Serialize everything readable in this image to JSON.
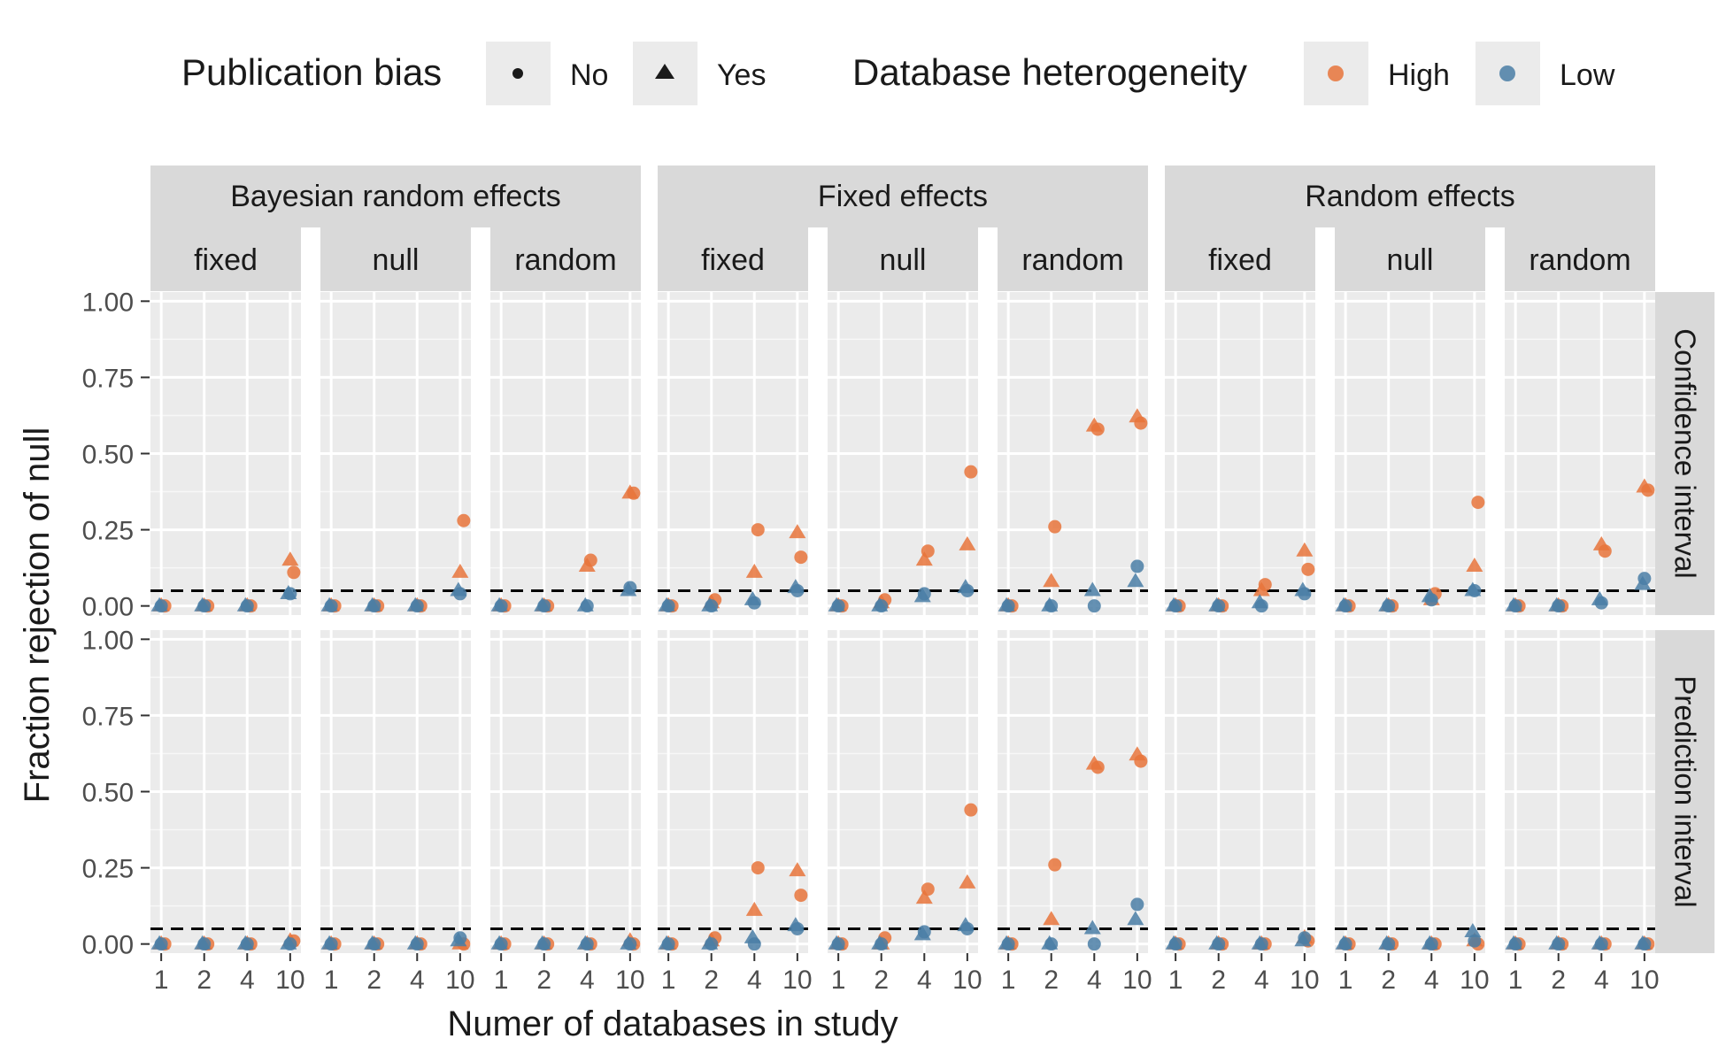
{
  "chart_data": {
    "type": "scatter",
    "xlabel": "Numer of databases in study",
    "ylabel": "Fraction rejection of null",
    "x_categories": [
      "1",
      "2",
      "4",
      "10"
    ],
    "y_ticks": [
      "0.00",
      "0.25",
      "0.50",
      "0.75",
      "1.00"
    ],
    "y_tick_values": [
      0,
      0.25,
      0.5,
      0.75,
      1.0
    ],
    "ylim": [
      -0.03,
      1.03
    ],
    "reference_line": 0.05,
    "legend": {
      "shape_title": "Publication bias",
      "shape_items": [
        {
          "key": "No",
          "label": "No",
          "shape": "circle"
        },
        {
          "key": "Yes",
          "label": "Yes",
          "shape": "triangle"
        }
      ],
      "color_title": "Database heterogeneity",
      "color_items": [
        {
          "key": "High",
          "label": "High",
          "color": "#E8743B"
        },
        {
          "key": "Low",
          "label": "Low",
          "color": "#4A7EA6"
        }
      ]
    },
    "methods": [
      "Bayesian random effects",
      "Fixed effects",
      "Random effects"
    ],
    "sub_panels": [
      "fixed",
      "null",
      "random"
    ],
    "rows": [
      "Confidence interval",
      "Prediction interval"
    ],
    "panels": [
      {
        "row": 0,
        "method": 0,
        "sub": 0,
        "points": {
          "High-No": [
            0.0,
            0.0,
            0.0,
            0.11
          ],
          "High-Yes": [
            0.0,
            0.0,
            0.0,
            0.15
          ],
          "Low-No": [
            0.0,
            0.0,
            0.0,
            0.04
          ],
          "Low-Yes": [
            0.0,
            0.0,
            0.0,
            0.04
          ]
        }
      },
      {
        "row": 0,
        "method": 0,
        "sub": 1,
        "points": {
          "High-No": [
            0.0,
            0.0,
            0.0,
            0.28
          ],
          "High-Yes": [
            0.0,
            0.0,
            0.0,
            0.11
          ],
          "Low-No": [
            0.0,
            0.0,
            0.0,
            0.04
          ],
          "Low-Yes": [
            0.0,
            0.0,
            0.0,
            0.05
          ]
        }
      },
      {
        "row": 0,
        "method": 0,
        "sub": 2,
        "points": {
          "High-No": [
            0.0,
            0.0,
            0.15,
            0.37
          ],
          "High-Yes": [
            0.0,
            0.0,
            0.13,
            0.37
          ],
          "Low-No": [
            0.0,
            0.0,
            0.0,
            0.06
          ],
          "Low-Yes": [
            0.0,
            0.0,
            0.0,
            0.05
          ]
        }
      },
      {
        "row": 0,
        "method": 1,
        "sub": 0,
        "points": {
          "High-No": [
            0.0,
            0.02,
            0.25,
            0.16
          ],
          "High-Yes": [
            0.0,
            0.01,
            0.11,
            0.24
          ],
          "Low-No": [
            0.0,
            0.0,
            0.01,
            0.05
          ],
          "Low-Yes": [
            0.0,
            0.0,
            0.02,
            0.06
          ]
        }
      },
      {
        "row": 0,
        "method": 1,
        "sub": 1,
        "points": {
          "High-No": [
            0.0,
            0.02,
            0.18,
            0.44
          ],
          "High-Yes": [
            0.0,
            0.01,
            0.15,
            0.2
          ],
          "Low-No": [
            0.0,
            0.0,
            0.04,
            0.05
          ],
          "Low-Yes": [
            0.0,
            0.0,
            0.03,
            0.06
          ]
        }
      },
      {
        "row": 0,
        "method": 1,
        "sub": 2,
        "points": {
          "High-No": [
            0.0,
            0.26,
            0.58,
            0.6
          ],
          "High-Yes": [
            0.0,
            0.08,
            0.59,
            0.62
          ],
          "Low-No": [
            0.0,
            0.0,
            0.0,
            0.13
          ],
          "Low-Yes": [
            0.0,
            0.0,
            0.05,
            0.08
          ]
        }
      },
      {
        "row": 0,
        "method": 2,
        "sub": 0,
        "points": {
          "High-No": [
            0.0,
            0.0,
            0.07,
            0.12
          ],
          "High-Yes": [
            0.0,
            0.0,
            0.05,
            0.18
          ],
          "Low-No": [
            0.0,
            0.0,
            0.0,
            0.04
          ],
          "Low-Yes": [
            0.0,
            0.0,
            0.01,
            0.05
          ]
        }
      },
      {
        "row": 0,
        "method": 2,
        "sub": 1,
        "points": {
          "High-No": [
            0.0,
            0.0,
            0.04,
            0.34
          ],
          "High-Yes": [
            0.0,
            0.0,
            0.02,
            0.13
          ],
          "Low-No": [
            0.0,
            0.0,
            0.02,
            0.05
          ],
          "Low-Yes": [
            0.0,
            0.0,
            0.03,
            0.05
          ]
        }
      },
      {
        "row": 0,
        "method": 2,
        "sub": 2,
        "points": {
          "High-No": [
            0.0,
            0.0,
            0.18,
            0.38
          ],
          "High-Yes": [
            0.0,
            0.0,
            0.2,
            0.39
          ],
          "Low-No": [
            0.0,
            0.0,
            0.01,
            0.09
          ],
          "Low-Yes": [
            0.0,
            0.0,
            0.02,
            0.07
          ]
        }
      },
      {
        "row": 1,
        "method": 0,
        "sub": 0,
        "points": {
          "High-No": [
            0.0,
            0.0,
            0.0,
            0.01
          ],
          "High-Yes": [
            0.0,
            0.0,
            0.0,
            0.01
          ],
          "Low-No": [
            0.0,
            0.0,
            0.0,
            0.0
          ],
          "Low-Yes": [
            0.0,
            0.0,
            0.0,
            0.0
          ]
        }
      },
      {
        "row": 1,
        "method": 0,
        "sub": 1,
        "points": {
          "High-No": [
            0.0,
            0.0,
            0.0,
            0.0
          ],
          "High-Yes": [
            0.0,
            0.0,
            0.0,
            0.0
          ],
          "Low-No": [
            0.0,
            0.0,
            0.0,
            0.02
          ],
          "Low-Yes": [
            0.0,
            0.0,
            0.0,
            0.01
          ]
        }
      },
      {
        "row": 1,
        "method": 0,
        "sub": 2,
        "points": {
          "High-No": [
            0.0,
            0.0,
            0.0,
            0.0
          ],
          "High-Yes": [
            0.0,
            0.0,
            0.0,
            0.01
          ],
          "Low-No": [
            0.0,
            0.0,
            0.0,
            0.0
          ],
          "Low-Yes": [
            0.0,
            0.0,
            0.0,
            0.0
          ]
        }
      },
      {
        "row": 1,
        "method": 1,
        "sub": 0,
        "points": {
          "High-No": [
            0.0,
            0.02,
            0.25,
            0.16
          ],
          "High-Yes": [
            0.0,
            0.01,
            0.11,
            0.24
          ],
          "Low-No": [
            0.0,
            0.0,
            0.0,
            0.05
          ],
          "Low-Yes": [
            0.0,
            0.0,
            0.02,
            0.06
          ]
        }
      },
      {
        "row": 1,
        "method": 1,
        "sub": 1,
        "points": {
          "High-No": [
            0.0,
            0.02,
            0.18,
            0.44
          ],
          "High-Yes": [
            0.0,
            0.0,
            0.15,
            0.2
          ],
          "Low-No": [
            0.0,
            0.0,
            0.04,
            0.05
          ],
          "Low-Yes": [
            0.0,
            0.0,
            0.03,
            0.06
          ]
        }
      },
      {
        "row": 1,
        "method": 1,
        "sub": 2,
        "points": {
          "High-No": [
            0.0,
            0.26,
            0.58,
            0.6
          ],
          "High-Yes": [
            0.0,
            0.08,
            0.59,
            0.62
          ],
          "Low-No": [
            0.0,
            0.0,
            0.0,
            0.13
          ],
          "Low-Yes": [
            0.0,
            0.0,
            0.05,
            0.08
          ]
        }
      },
      {
        "row": 1,
        "method": 2,
        "sub": 0,
        "points": {
          "High-No": [
            0.0,
            0.0,
            0.0,
            0.01
          ],
          "High-Yes": [
            0.0,
            0.0,
            0.0,
            0.02
          ],
          "Low-No": [
            0.0,
            0.0,
            0.0,
            0.02
          ],
          "Low-Yes": [
            0.0,
            0.0,
            0.0,
            0.01
          ]
        }
      },
      {
        "row": 1,
        "method": 2,
        "sub": 1,
        "points": {
          "High-No": [
            0.0,
            0.0,
            0.0,
            0.0
          ],
          "High-Yes": [
            0.0,
            0.0,
            0.0,
            0.01
          ],
          "Low-No": [
            0.0,
            0.0,
            0.0,
            0.01
          ],
          "Low-Yes": [
            0.0,
            0.0,
            0.0,
            0.04
          ]
        }
      },
      {
        "row": 1,
        "method": 2,
        "sub": 2,
        "points": {
          "High-No": [
            0.0,
            0.0,
            0.0,
            0.0
          ],
          "High-Yes": [
            0.0,
            0.0,
            0.0,
            0.0
          ],
          "Low-No": [
            0.0,
            0.0,
            0.0,
            0.0
          ],
          "Low-Yes": [
            0.0,
            0.0,
            0.0,
            0.0
          ]
        }
      }
    ]
  }
}
